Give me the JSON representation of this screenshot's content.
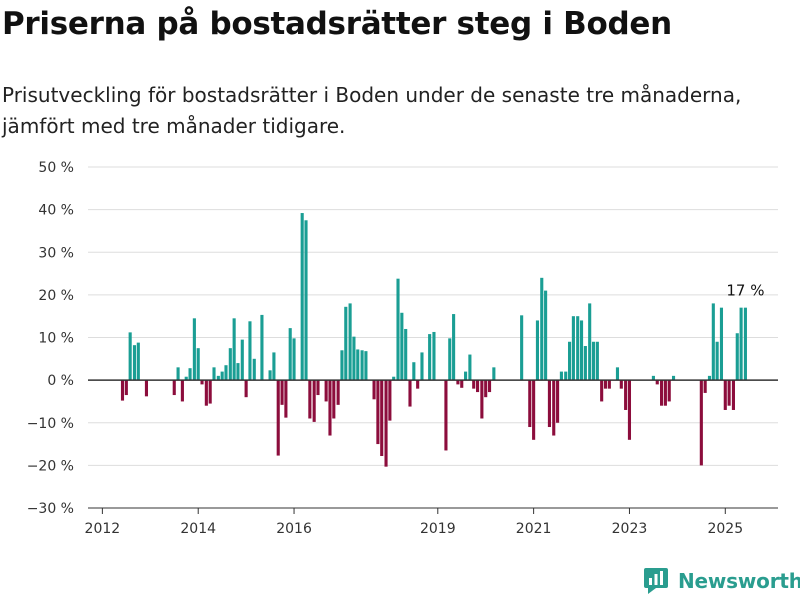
{
  "chart_data": {
    "type": "bar",
    "title": "Priserna på bostadsrätter steg i Boden",
    "subtitle": "Prisutveckling för bostadsrätter i Boden under de senaste tre månaderna, jämfört med tre månader tidigare.",
    "ylim": [
      -30,
      50
    ],
    "yticks": [
      -30,
      -20,
      -10,
      0,
      10,
      20,
      30,
      40,
      50
    ],
    "ytick_labels": [
      "−30 %",
      "−20 %",
      "−10 %",
      "0 %",
      "10 %",
      "20 %",
      "30 %",
      "40 %",
      "50 %"
    ],
    "xlim": [
      2011.7,
      2026.1
    ],
    "xticks": [
      2012,
      2014,
      2016,
      2019,
      2021,
      2023,
      2025
    ],
    "xtick_labels": [
      "2012",
      "2014",
      "2016",
      "2019",
      "2021",
      "2023",
      "2025"
    ],
    "grid": true,
    "legend": false,
    "colors": {
      "positive": "#1a9e94",
      "negative": "#8c0d3c"
    },
    "annotation": {
      "label": "17 %",
      "x": 2025.42,
      "value": 17
    },
    "x": [
      2012.42,
      2012.5,
      2012.58,
      2012.67,
      2012.75,
      2012.92,
      2013.5,
      2013.58,
      2013.67,
      2013.75,
      2013.83,
      2013.92,
      2014.0,
      2014.08,
      2014.17,
      2014.25,
      2014.33,
      2014.42,
      2014.5,
      2014.58,
      2014.67,
      2014.75,
      2014.83,
      2014.92,
      2015.0,
      2015.08,
      2015.17,
      2015.25,
      2015.33,
      2015.42,
      2015.5,
      2015.58,
      2015.67,
      2015.75,
      2015.83,
      2015.92,
      2016.0,
      2016.08,
      2016.17,
      2016.25,
      2016.33,
      2016.42,
      2016.5,
      2016.58,
      2016.67,
      2016.75,
      2016.83,
      2016.92,
      2017.0,
      2017.08,
      2017.17,
      2017.25,
      2017.33,
      2017.42,
      2017.5,
      2017.58,
      2017.67,
      2017.75,
      2017.83,
      2017.92,
      2018.0,
      2018.08,
      2018.17,
      2018.25,
      2018.33,
      2018.42,
      2018.5,
      2018.58,
      2018.67,
      2018.75,
      2018.83,
      2018.92,
      2019.0,
      2019.08,
      2019.17,
      2019.25,
      2019.33,
      2019.42,
      2019.5,
      2019.58,
      2019.67,
      2019.75,
      2019.83,
      2019.92,
      2020.0,
      2020.08,
      2020.17,
      2020.25,
      2020.75,
      2020.83,
      2020.92,
      2021.0,
      2021.08,
      2021.17,
      2021.25,
      2021.33,
      2021.42,
      2021.5,
      2021.58,
      2021.67,
      2021.75,
      2021.83,
      2021.92,
      2022.0,
      2022.08,
      2022.17,
      2022.25,
      2022.33,
      2022.42,
      2022.5,
      2022.58,
      2022.67,
      2022.75,
      2022.83,
      2022.92,
      2023.0,
      2023.08,
      2023.5,
      2023.58,
      2023.67,
      2023.75,
      2023.83,
      2023.92,
      2024.5,
      2024.58,
      2024.67,
      2024.75,
      2024.83,
      2024.92,
      2025.0,
      2025.08,
      2025.17,
      2025.25,
      2025.33,
      2025.42
    ],
    "values": [
      -4.8,
      -3.5,
      11.2,
      8.2,
      8.8,
      -3.8,
      -3.5,
      3.0,
      -5.0,
      0.8,
      2.8,
      14.5,
      7.5,
      -1.0,
      -6.0,
      -5.5,
      3.0,
      1.0,
      2.0,
      3.5,
      7.5,
      14.5,
      4.0,
      9.5,
      -4.0,
      13.8,
      5.0,
      0.0,
      15.3,
      0.0,
      2.3,
      6.5,
      -17.7,
      -5.8,
      -8.8,
      12.2,
      9.8,
      0.0,
      39.2,
      37.5,
      -9.0,
      -9.8,
      -3.5,
      0.0,
      -5.0,
      -13.0,
      -9.0,
      -5.8,
      7.0,
      17.2,
      18.0,
      10.2,
      7.2,
      7.0,
      6.8,
      0.0,
      -4.5,
      -15.0,
      -17.8,
      -20.3,
      -9.5,
      0.8,
      23.8,
      15.8,
      12.0,
      -6.2,
      4.2,
      -2.0,
      6.5,
      0.0,
      10.8,
      11.3,
      0.0,
      0.0,
      -16.5,
      9.8,
      15.5,
      -1.0,
      -1.8,
      2.0,
      6.0,
      -2.0,
      -2.8,
      -9.0,
      -4.0,
      -2.8,
      3.0,
      0.0,
      15.2,
      0.0,
      -11.0,
      -14.0,
      14.0,
      24.0,
      21.0,
      -11.0,
      -13.0,
      -10.0,
      2.0,
      2.0,
      9.0,
      15.0,
      15.0,
      14.0,
      8.0,
      18.0,
      9.0,
      9.0,
      -5.0,
      -2.0,
      -2.0,
      0.0,
      3.0,
      -2.0,
      -7.0,
      -14.0,
      0.0,
      1.0,
      -1.0,
      -6.0,
      -6.0,
      -5.0,
      1.0,
      -20.0,
      -3.0,
      1.0,
      18.0,
      9.0,
      17.0,
      -7.0,
      -6.0,
      -7.0,
      11.0,
      17.0,
      17.0
    ]
  },
  "branding": {
    "name": "Newsworthy"
  }
}
